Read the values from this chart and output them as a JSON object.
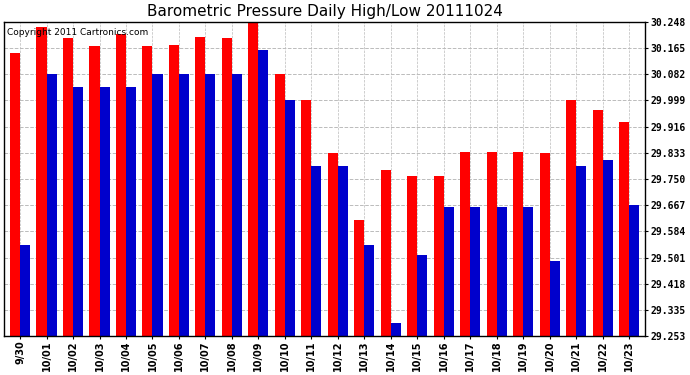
{
  "title": "Barometric Pressure Daily High/Low 20111024",
  "copyright": "Copyright 2011 Cartronics.com",
  "x_labels": [
    "9/30",
    "10/01",
    "10/02",
    "10/03",
    "10/04",
    "10/05",
    "10/06",
    "10/07",
    "10/08",
    "10/09",
    "10/10",
    "10/11",
    "10/12",
    "10/13",
    "10/14",
    "10/15",
    "10/16",
    "10/17",
    "10/18",
    "10/19",
    "10/20",
    "10/21",
    "10/22",
    "10/23"
  ],
  "high_values": [
    30.15,
    30.23,
    30.195,
    30.17,
    30.21,
    30.17,
    30.175,
    30.2,
    30.195,
    30.248,
    30.082,
    29.999,
    29.833,
    29.62,
    29.78,
    29.76,
    29.76,
    29.835,
    29.835,
    29.835,
    29.833,
    30.0,
    29.97,
    29.93
  ],
  "low_values": [
    29.54,
    30.082,
    30.04,
    30.04,
    30.04,
    30.082,
    30.082,
    30.082,
    30.082,
    30.16,
    29.999,
    29.79,
    29.79,
    29.54,
    29.295,
    29.51,
    29.66,
    29.66,
    29.66,
    29.66,
    29.49,
    29.79,
    29.81,
    29.667
  ],
  "ylim_min": 29.253,
  "ylim_max": 30.248,
  "yticks": [
    29.253,
    29.335,
    29.418,
    29.501,
    29.584,
    29.667,
    29.75,
    29.833,
    29.916,
    29.999,
    30.082,
    30.165,
    30.248
  ],
  "high_color": "#ff0000",
  "low_color": "#0000cc",
  "bg_color": "#ffffff",
  "grid_color": "#bbbbbb",
  "title_fontsize": 11,
  "bar_width": 0.38,
  "figwidth": 6.9,
  "figheight": 3.75,
  "dpi": 100
}
